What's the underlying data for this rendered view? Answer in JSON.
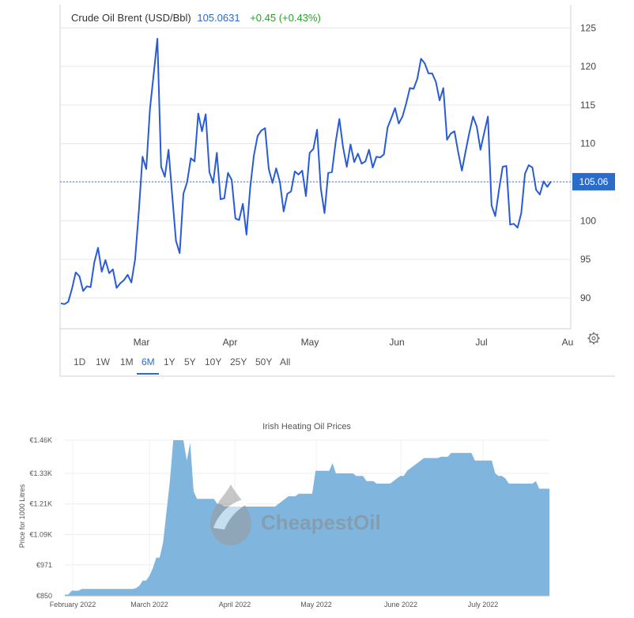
{
  "chart_data": [
    {
      "type": "line",
      "title": "Crude Oil Brent (USD/Bbl)",
      "last_value": "105.0631",
      "change": "+0.45 (+0.43%)",
      "price_label": "105.06",
      "price_level": 105.06,
      "x_ticks": [
        "Mar",
        "Apr",
        "May",
        "Jun",
        "Jul",
        "Au"
      ],
      "y_ticks": [
        "90",
        "95",
        "100",
        "105",
        "110",
        "115",
        "120",
        "125"
      ],
      "ylim": [
        86,
        128
      ],
      "timeframes": [
        "1D",
        "1W",
        "1M",
        "6M",
        "1Y",
        "5Y",
        "10Y",
        "25Y",
        "50Y",
        "All"
      ],
      "active_timeframe": "6M",
      "colors": {
        "line": "#2a5bd7",
        "accent": "#2a6ccc",
        "up": "#2aa02a"
      },
      "settings_icon": "gear-icon",
      "series": [
        {
          "values": [
            89.3,
            89.2,
            89.5,
            91.2,
            93.3,
            92.8,
            90.9,
            91.5,
            91.4,
            94.6,
            96.5,
            93.4,
            94.9,
            93.2,
            93.7,
            91.3,
            91.9,
            92.3,
            93.0,
            92.0,
            95.0,
            101.2,
            108.3,
            106.7,
            114.5,
            119.0,
            123.6,
            107.0,
            105.7,
            109.2,
            103.2,
            97.4,
            95.8,
            103.5,
            105.0,
            108.1,
            107.7,
            113.9,
            111.6,
            113.8,
            106.3,
            104.9,
            108.8,
            102.8,
            102.9,
            106.2,
            105.3,
            100.3,
            100.1,
            102.2,
            98.2,
            104.3,
            108.5,
            111.0,
            111.7,
            112.0,
            106.7,
            104.9,
            106.8,
            105.0,
            101.2,
            103.5,
            103.8,
            106.4,
            106.0,
            106.5,
            103.2,
            108.8,
            109.3,
            111.8,
            104.2,
            101.0,
            106.2,
            106.3,
            110.2,
            113.2,
            109.5,
            107.0,
            109.9,
            107.6,
            108.7,
            107.4,
            107.7,
            109.2,
            106.9,
            108.3,
            108.2,
            108.6,
            112.1,
            113.3,
            114.6,
            112.6,
            113.5,
            115.2,
            117.2,
            117.1,
            118.4,
            121.0,
            120.4,
            119.1,
            119.1,
            118.0,
            115.6,
            117.2,
            110.5,
            111.3,
            111.6,
            108.9,
            106.5,
            109.0,
            111.4,
            113.5,
            112.2,
            109.2,
            111.4,
            113.5,
            102.0,
            100.6,
            104.0,
            107.0,
            107.1,
            99.5,
            99.6,
            99.1,
            101.0,
            106.1,
            107.2,
            106.9,
            104.0,
            103.4,
            105.1,
            104.4,
            105.1
          ]
        }
      ]
    },
    {
      "type": "area",
      "title": "Irish Heating Oil Prices",
      "ylabel": "Price for 1000 Litres",
      "y_ticks": [
        "€850",
        "€971",
        "€1.09K",
        "€1.21K",
        "€1.33K",
        "€1.46K"
      ],
      "y_tick_values": [
        850,
        971,
        1090,
        1210,
        1330,
        1460
      ],
      "ylim": [
        850,
        1460
      ],
      "x_ticks": [
        "February 2022",
        "March 2022",
        "April 2022",
        "May 2022",
        "June 2022",
        "July 2022"
      ],
      "watermark": "CheapestOil",
      "colors": {
        "fill": "#80b6de"
      },
      "series": [
        {
          "values": [
            855,
            855,
            870,
            870,
            870,
            877,
            877,
            877,
            877,
            877,
            877,
            877,
            877,
            877,
            877,
            877,
            877,
            877,
            877,
            877,
            877,
            880,
            890,
            910,
            910,
            930,
            960,
            1000,
            1000,
            1060,
            1180,
            1300,
            1460,
            1460,
            1460,
            1460,
            1380,
            1450,
            1260,
            1230,
            1230,
            1230,
            1230,
            1230,
            1230,
            1210,
            1210,
            1200,
            1200,
            1200,
            1200,
            1200,
            1200,
            1200,
            1200,
            1200,
            1200,
            1200,
            1200,
            1200,
            1200,
            1200,
            1200,
            1210,
            1220,
            1230,
            1240,
            1240,
            1240,
            1250,
            1250,
            1250,
            1250,
            1250,
            1340,
            1340,
            1340,
            1340,
            1340,
            1370,
            1330,
            1330,
            1330,
            1330,
            1330,
            1330,
            1320,
            1320,
            1320,
            1300,
            1300,
            1300,
            1290,
            1290,
            1290,
            1290,
            1290,
            1300,
            1310,
            1320,
            1320,
            1340,
            1350,
            1360,
            1370,
            1380,
            1390,
            1390,
            1390,
            1390,
            1390,
            1395,
            1395,
            1395,
            1410,
            1410,
            1410,
            1410,
            1410,
            1410,
            1410,
            1380,
            1380,
            1380,
            1380,
            1380,
            1380,
            1330,
            1320,
            1320,
            1310,
            1290,
            1290,
            1290,
            1290,
            1290,
            1290,
            1290,
            1290,
            1300,
            1270,
            1270,
            1270,
            1270
          ]
        }
      ]
    }
  ]
}
